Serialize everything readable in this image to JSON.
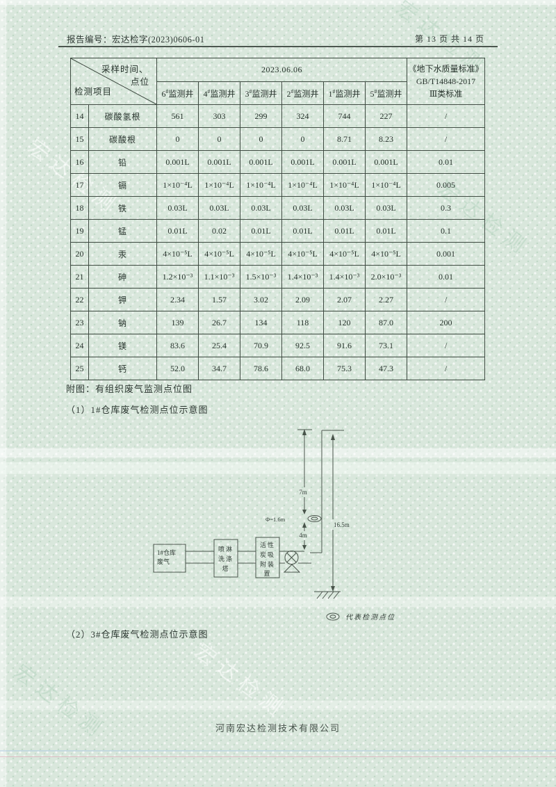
{
  "page": {
    "report_no": "报告编号：宏达检字(2023)0606-01",
    "page_no": "第 13 页 共 14 页",
    "footer": "河南宏达检测技术有限公司",
    "watermark": "宏达检测",
    "background_color": "#d9e7dc",
    "line_color": "#3e4a41"
  },
  "table": {
    "corner_top": "采样时间、",
    "corner_top2": "点位",
    "corner_bottom": "检测项目",
    "date_header": "2023.06.06",
    "standard_lines": [
      "《地下水质量标准》",
      "GB/T14848-2017",
      "Ⅲ类标准"
    ],
    "well_headers": [
      {
        "n": "6",
        "mark": "#",
        "name": "监测井"
      },
      {
        "n": "4",
        "mark": "#",
        "name": "监测井"
      },
      {
        "n": "3",
        "mark": "#",
        "name": "监测井"
      },
      {
        "n": "2",
        "mark": "#",
        "name": "监测井"
      },
      {
        "n": "1",
        "mark": "#",
        "name": "监测井"
      },
      {
        "n": "5",
        "mark": "#",
        "name": "监测井"
      }
    ],
    "rows": [
      {
        "no": "14",
        "item": "碳酸氢根",
        "values": [
          "561",
          "303",
          "299",
          "324",
          "744",
          "227"
        ],
        "standard": "/"
      },
      {
        "no": "15",
        "item": "碳酸根",
        "values": [
          "0",
          "0",
          "0",
          "0",
          "8.71",
          "8.23"
        ],
        "standard": "/"
      },
      {
        "no": "16",
        "item": "铅",
        "values": [
          "0.001L",
          "0.001L",
          "0.001L",
          "0.001L",
          "0.001L",
          "0.001L"
        ],
        "standard": "0.01"
      },
      {
        "no": "17",
        "item": "镉",
        "values": [
          "1×10⁻⁴L",
          "1×10⁻⁴L",
          "1×10⁻⁴L",
          "1×10⁻⁴L",
          "1×10⁻⁴L",
          "1×10⁻⁴L"
        ],
        "standard": "0.005"
      },
      {
        "no": "18",
        "item": "铁",
        "values": [
          "0.03L",
          "0.03L",
          "0.03L",
          "0.03L",
          "0.03L",
          "0.03L"
        ],
        "standard": "0.3"
      },
      {
        "no": "19",
        "item": "锰",
        "values": [
          "0.01L",
          "0.02",
          "0.01L",
          "0.01L",
          "0.01L",
          "0.01L"
        ],
        "standard": "0.1"
      },
      {
        "no": "20",
        "item": "汞",
        "values": [
          "4×10⁻⁵L",
          "4×10⁻⁵L",
          "4×10⁻⁵L",
          "4×10⁻⁵L",
          "4×10⁻⁵L",
          "4×10⁻⁵L"
        ],
        "standard": "0.001"
      },
      {
        "no": "21",
        "item": "砷",
        "values": [
          "1.2×10⁻³",
          "1.1×10⁻³",
          "1.5×10⁻³",
          "1.4×10⁻³",
          "1.4×10⁻³",
          "2.0×10⁻³"
        ],
        "standard": "0.01"
      },
      {
        "no": "22",
        "item": "钾",
        "values": [
          "2.34",
          "1.57",
          "3.02",
          "2.09",
          "2.07",
          "2.27"
        ],
        "standard": "/"
      },
      {
        "no": "23",
        "item": "钠",
        "values": [
          "139",
          "26.7",
          "134",
          "118",
          "120",
          "87.0"
        ],
        "standard": "200"
      },
      {
        "no": "24",
        "item": "镁",
        "values": [
          "83.6",
          "25.4",
          "70.9",
          "92.5",
          "91.6",
          "73.1"
        ],
        "standard": "/"
      },
      {
        "no": "25",
        "item": "钙",
        "values": [
          "52.0",
          "34.7",
          "78.6",
          "68.0",
          "75.3",
          "47.3"
        ],
        "standard": "/"
      }
    ]
  },
  "sections": {
    "attachment_title": "附图：有组织废气监测点位图",
    "sub1_title": "（1）1#仓库废气检测点位示意图",
    "sub2_title": "（2）3#仓库废气检测点位示意图"
  },
  "diagram": {
    "box1_lines": [
      "1#仓库",
      "废气"
    ],
    "box2_lines": [
      "喷淋",
      "洗涤",
      "塔"
    ],
    "box3_lines": [
      "活性",
      "炭吸",
      "附装",
      "置"
    ],
    "dim_top": "7m",
    "dim_bottom": "4m",
    "dim_total": "16.5m",
    "dim_diameter": "Φ=1.6m",
    "legend_label": "代表检测点位"
  }
}
